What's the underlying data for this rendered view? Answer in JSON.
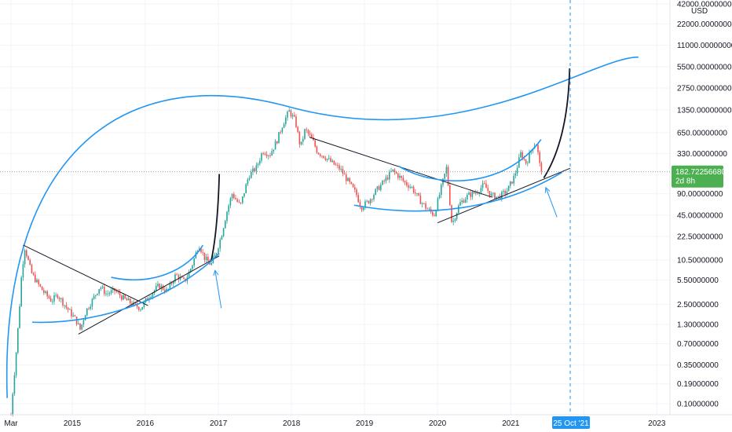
{
  "chart_data": {
    "type": "candlestick",
    "currency": "USD",
    "scale": "log",
    "ylim": [
      0.07,
      42000
    ],
    "y_ticks": [
      {
        "value": 42000,
        "label": "42000.00000000"
      },
      {
        "value": 22000,
        "label": "22000.00000000"
      },
      {
        "value": 11000,
        "label": "11000.00000000"
      },
      {
        "value": 5500,
        "label": "5500.00000000"
      },
      {
        "value": 2750,
        "label": "2750.00000000"
      },
      {
        "value": 1350,
        "label": "1350.00000000"
      },
      {
        "value": 650,
        "label": "650.00000000"
      },
      {
        "value": 330,
        "label": "330.00000000"
      },
      {
        "value": 90,
        "label": "90.00000000"
      },
      {
        "value": 45,
        "label": "45.00000000"
      },
      {
        "value": 22.5,
        "label": "22.50000000"
      },
      {
        "value": 10.5,
        "label": "10.50000000"
      },
      {
        "value": 5.5,
        "label": "5.50000000"
      },
      {
        "value": 2.5,
        "label": "2.50000000"
      },
      {
        "value": 1.3,
        "label": "1.30000000"
      },
      {
        "value": 0.7,
        "label": "0.70000000"
      },
      {
        "value": 0.35,
        "label": "0.35000000"
      },
      {
        "value": 0.19,
        "label": "0.19000000"
      },
      {
        "value": 0.1,
        "label": "0.10000000"
      }
    ],
    "x_ticks": [
      {
        "label": "Mar",
        "date": "2014-03-01"
      },
      {
        "label": "2015",
        "date": "2015-01-01"
      },
      {
        "label": "2016",
        "date": "2016-01-01"
      },
      {
        "label": "2017",
        "date": "2017-01-01"
      },
      {
        "label": "2018",
        "date": "2018-01-01"
      },
      {
        "label": "2019",
        "date": "2019-01-01"
      },
      {
        "label": "2020",
        "date": "2020-01-01"
      },
      {
        "label": "2021",
        "date": "2021-01-01"
      },
      {
        "label": "2",
        "date": "2022-01-01"
      },
      {
        "label": "2023",
        "date": "2023-01-01"
      }
    ],
    "current_price": {
      "value": 182.7225668,
      "label": "182.72256680",
      "countdown": "2d 8h"
    },
    "vertical_marker": {
      "date": "2021-10-25",
      "label": "25 Oct '21"
    },
    "series": [
      {
        "date": "2014-03-01",
        "price": 0.07
      },
      {
        "date": "2014-03-10",
        "price": 0.15
      },
      {
        "date": "2014-03-25",
        "price": 0.45
      },
      {
        "date": "2014-04-10",
        "price": 1.8
      },
      {
        "date": "2014-04-22",
        "price": 6.0
      },
      {
        "date": "2014-05-08",
        "price": 16.0
      },
      {
        "date": "2014-05-20",
        "price": 12.0
      },
      {
        "date": "2014-06-10",
        "price": 7.0
      },
      {
        "date": "2014-07-10",
        "price": 5.0
      },
      {
        "date": "2014-08-15",
        "price": 3.6
      },
      {
        "date": "2014-09-20",
        "price": 2.8
      },
      {
        "date": "2014-10-20",
        "price": 3.4
      },
      {
        "date": "2014-12-01",
        "price": 2.3
      },
      {
        "date": "2015-01-20",
        "price": 1.5
      },
      {
        "date": "2015-02-10",
        "price": 1.1
      },
      {
        "date": "2015-03-10",
        "price": 2.0
      },
      {
        "date": "2015-04-10",
        "price": 2.8
      },
      {
        "date": "2015-05-20",
        "price": 4.5
      },
      {
        "date": "2015-06-20",
        "price": 3.5
      },
      {
        "date": "2015-08-01",
        "price": 3.9
      },
      {
        "date": "2015-09-15",
        "price": 3.0
      },
      {
        "date": "2015-11-01",
        "price": 2.5
      },
      {
        "date": "2015-12-10",
        "price": 2.2
      },
      {
        "date": "2016-01-20",
        "price": 3.3
      },
      {
        "date": "2016-03-10",
        "price": 4.6
      },
      {
        "date": "2016-04-20",
        "price": 3.8
      },
      {
        "date": "2016-06-01",
        "price": 6.5
      },
      {
        "date": "2016-07-15",
        "price": 5.2
      },
      {
        "date": "2016-08-20",
        "price": 8.5
      },
      {
        "date": "2016-09-25",
        "price": 17.5
      },
      {
        "date": "2016-10-25",
        "price": 11.0
      },
      {
        "date": "2016-11-25",
        "price": 9.0
      },
      {
        "date": "2016-12-20",
        "price": 13.0
      },
      {
        "date": "2017-01-15",
        "price": 23.0
      },
      {
        "date": "2017-02-10",
        "price": 48.0
      },
      {
        "date": "2017-03-10",
        "price": 90.0
      },
      {
        "date": "2017-04-20",
        "price": 60.0
      },
      {
        "date": "2017-06-01",
        "price": 160.0
      },
      {
        "date": "2017-07-10",
        "price": 210.0
      },
      {
        "date": "2017-08-10",
        "price": 360.0
      },
      {
        "date": "2017-09-15",
        "price": 320.0
      },
      {
        "date": "2017-10-20",
        "price": 500.0
      },
      {
        "date": "2017-11-20",
        "price": 880.0
      },
      {
        "date": "2017-12-20",
        "price": 1300.0
      },
      {
        "date": "2018-01-20",
        "price": 950.0
      },
      {
        "date": "2018-02-15",
        "price": 400.0
      },
      {
        "date": "2018-03-10",
        "price": 720.0
      },
      {
        "date": "2018-04-15",
        "price": 520.0
      },
      {
        "date": "2018-05-10",
        "price": 350.0
      },
      {
        "date": "2018-06-15",
        "price": 300.0
      },
      {
        "date": "2018-07-25",
        "price": 240.0
      },
      {
        "date": "2018-09-01",
        "price": 200.0
      },
      {
        "date": "2018-10-10",
        "price": 135.0
      },
      {
        "date": "2018-11-20",
        "price": 90.0
      },
      {
        "date": "2018-12-15",
        "price": 58.0
      },
      {
        "date": "2019-01-20",
        "price": 70.0
      },
      {
        "date": "2019-03-01",
        "price": 100.0
      },
      {
        "date": "2019-04-15",
        "price": 140.0
      },
      {
        "date": "2019-05-20",
        "price": 190.0
      },
      {
        "date": "2019-06-20",
        "price": 160.0
      },
      {
        "date": "2019-07-20",
        "price": 130.0
      },
      {
        "date": "2019-08-25",
        "price": 110.0
      },
      {
        "date": "2019-10-01",
        "price": 75.0
      },
      {
        "date": "2019-11-10",
        "price": 55.0
      },
      {
        "date": "2019-12-15",
        "price": 45.0
      },
      {
        "date": "2020-01-20",
        "price": 110.0
      },
      {
        "date": "2020-02-15",
        "price": 210.0
      },
      {
        "date": "2020-03-13",
        "price": 33.0
      },
      {
        "date": "2020-04-20",
        "price": 65.0
      },
      {
        "date": "2020-06-01",
        "price": 85.0
      },
      {
        "date": "2020-07-15",
        "price": 95.0
      },
      {
        "date": "2020-08-20",
        "price": 120.0
      },
      {
        "date": "2020-09-25",
        "price": 85.0
      },
      {
        "date": "2020-11-01",
        "price": 80.0
      },
      {
        "date": "2020-12-15",
        "price": 100.0
      },
      {
        "date": "2021-01-20",
        "price": 160.0
      },
      {
        "date": "2021-02-20",
        "price": 330.0
      },
      {
        "date": "2021-03-20",
        "price": 240.0
      },
      {
        "date": "2021-04-20",
        "price": 420.0
      },
      {
        "date": "2021-05-10",
        "price": 460.0
      },
      {
        "date": "2021-05-25",
        "price": 230.0
      },
      {
        "date": "2021-06-10",
        "price": 182.7
      }
    ],
    "drawings": {
      "big_arc": {
        "start": {
          "date": "2014-02-10",
          "price": 0.12
        },
        "peak": {
          "date": "2017-12-20",
          "price": 1500
        },
        "end": {
          "date": "2022-10-01",
          "price": 7500
        }
      },
      "trendlines_black": [
        {
          "from": {
            "date": "2014-05-01",
            "price": 17
          },
          "to": {
            "date": "2016-01-15",
            "price": 2.4
          }
        },
        {
          "from": {
            "date": "2015-02-01",
            "price": 0.95
          },
          "to": {
            "date": "2017-01-05",
            "price": 12
          }
        },
        {
          "from": {
            "date": "2018-04-01",
            "price": 560
          },
          "to": {
            "date": "2020-10-01",
            "price": 80
          }
        },
        {
          "from": {
            "date": "2020-01-01",
            "price": 35
          },
          "to": {
            "date": "2021-10-25",
            "price": 205
          }
        }
      ],
      "parabolas_black": [
        {
          "from": {
            "date": "2016-11-25",
            "price": 10
          },
          "to": {
            "date": "2017-01-05",
            "price": 170
          }
        },
        {
          "from": {
            "date": "2021-06-15",
            "price": 150
          },
          "to": {
            "date": "2021-10-22",
            "price": 5200
          }
        }
      ],
      "blue_curves": [
        [
          {
            "date": "2014-06-15",
            "price": 1.4
          },
          {
            "date": "2015-06-01",
            "price": 1.3
          },
          {
            "date": "2016-06-01",
            "price": 3.2
          },
          {
            "date": "2017-01-05",
            "price": 13
          }
        ],
        [
          {
            "date": "2015-07-15",
            "price": 6.0
          },
          {
            "date": "2016-02-01",
            "price": 4.5
          },
          {
            "date": "2016-08-01",
            "price": 7.5
          },
          {
            "date": "2016-10-15",
            "price": 17
          }
        ],
        [
          {
            "date": "2018-11-10",
            "price": 62
          },
          {
            "date": "2019-11-15",
            "price": 40
          },
          {
            "date": "2020-11-15",
            "price": 55
          },
          {
            "date": "2021-09-15",
            "price": 180
          }
        ],
        [
          {
            "date": "2019-06-20",
            "price": 220
          },
          {
            "date": "2020-01-01",
            "price": 105
          },
          {
            "date": "2020-12-01",
            "price": 105
          },
          {
            "date": "2021-06-01",
            "price": 520
          }
        ]
      ],
      "blue_arrows": [
        {
          "from": {
            "date": "2017-01-15",
            "price": 2.2
          },
          "to": {
            "date": "2016-12-15",
            "price": 7.5
          }
        },
        {
          "from": {
            "date": "2021-08-20",
            "price": 42
          },
          "to": {
            "date": "2021-06-25",
            "price": 110
          }
        }
      ]
    }
  }
}
